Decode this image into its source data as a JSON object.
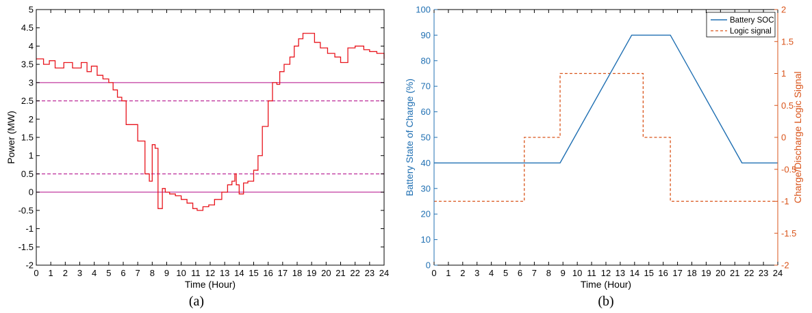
{
  "chart_data": [
    {
      "type": "line",
      "caption": "(a)",
      "xlabel": "Time (Hour)",
      "ylabel": "Power (MW)",
      "xlim": [
        0,
        24
      ],
      "ylim": [
        -2,
        5
      ],
      "xticks": [
        "0",
        "1",
        "2",
        "3",
        "4",
        "5",
        "6",
        "7",
        "8",
        "9",
        "10",
        "11",
        "12",
        "13",
        "14",
        "15",
        "16",
        "17",
        "18",
        "19",
        "20",
        "21",
        "22",
        "23",
        "24"
      ],
      "yticks": [
        "-2",
        "-1.5",
        "-1",
        "-0.5",
        "0",
        "0.5",
        "1",
        "1.5",
        "2",
        "2.5",
        "3",
        "3.5",
        "4",
        "4.5",
        "5"
      ],
      "grid": false,
      "colors": {
        "power": "#e8141c",
        "limits": "#c0389f"
      },
      "series": [
        {
          "style": "step",
          "x": [
            0,
            0.5,
            0.9,
            1.3,
            1.9,
            2.5,
            3.1,
            3.5,
            3.8,
            4.2,
            4.6,
            5.0,
            5.3,
            5.6,
            5.9,
            6.2,
            6.5,
            7.0,
            7.5,
            7.8,
            8.0,
            8.2,
            8.4,
            8.7,
            8.9,
            9.2,
            9.6,
            10.0,
            10.4,
            10.8,
            11.1,
            11.5,
            11.9,
            12.3,
            12.8,
            13.2,
            13.5,
            13.7,
            13.8,
            14.0,
            14.3,
            14.6,
            15.0,
            15.3,
            15.6,
            16.0,
            16.3,
            16.6,
            16.8,
            17.1,
            17.5,
            17.8,
            18.1,
            18.4,
            18.8,
            19.2,
            19.6,
            20.1,
            20.6,
            21.0,
            21.5,
            22.0,
            22.6,
            23.0,
            23.5,
            24
          ],
          "y": [
            3.65,
            3.5,
            3.6,
            3.4,
            3.55,
            3.4,
            3.55,
            3.3,
            3.45,
            3.2,
            3.1,
            3.0,
            2.8,
            2.6,
            2.5,
            1.85,
            1.85,
            1.4,
            0.5,
            0.3,
            1.3,
            1.2,
            -0.45,
            0.1,
            0.0,
            -0.05,
            -0.1,
            -0.2,
            -0.3,
            -0.45,
            -0.5,
            -0.4,
            -0.35,
            -0.2,
            0.0,
            0.2,
            0.3,
            0.5,
            0.2,
            -0.05,
            0.25,
            0.3,
            0.6,
            1.0,
            1.8,
            2.5,
            3.0,
            2.95,
            3.3,
            3.5,
            3.7,
            4.0,
            4.2,
            4.35,
            4.35,
            4.1,
            3.95,
            3.8,
            3.7,
            3.55,
            3.95,
            4.0,
            3.9,
            3.85,
            3.8,
            3.65
          ]
        },
        {
          "y": 3.0,
          "style": "solid"
        },
        {
          "y": 0.0,
          "style": "solid"
        },
        {
          "y": 2.5,
          "style": "dashed"
        },
        {
          "y": 0.5,
          "style": "dashed"
        }
      ]
    },
    {
      "type": "line",
      "caption": "(b)",
      "xlabel": "Time (Hour)",
      "ylabel": "Battery State of Charge (%)",
      "ylabel_right": "Charge/Discharge Logic Signal",
      "xlim": [
        0,
        24
      ],
      "ylim": [
        0,
        100
      ],
      "ylim_right": [
        -2,
        2
      ],
      "xticks": [
        "0",
        "1",
        "2",
        "3",
        "4",
        "5",
        "6",
        "7",
        "8",
        "9",
        "10",
        "11",
        "12",
        "13",
        "14",
        "15",
        "16",
        "17",
        "18",
        "19",
        "20",
        "21",
        "22",
        "23",
        "24"
      ],
      "yticks": [
        "0",
        "10",
        "20",
        "30",
        "40",
        "50",
        "60",
        "70",
        "80",
        "90",
        "100"
      ],
      "yticks_right": [
        "-2",
        "-1.5",
        "-1",
        "-0.5",
        "0",
        "0.5",
        "1",
        "1.5",
        "2"
      ],
      "grid": false,
      "legend_position": "top-right",
      "colors": {
        "soc": "#1f6fb2",
        "signal": "#d95319"
      },
      "series": [
        {
          "name": "Battery SOC",
          "axis": "left",
          "x": [
            0,
            8.8,
            13.8,
            16.5,
            21.5,
            24
          ],
          "y": [
            40,
            40,
            90,
            90,
            40,
            40
          ]
        },
        {
          "name": "Logic signal",
          "axis": "right",
          "style": "dashed-step",
          "x": [
            0,
            6.3,
            8.8,
            14.6,
            16.5,
            24
          ],
          "y": [
            -1,
            0,
            1,
            0,
            -1,
            -1
          ]
        }
      ]
    }
  ]
}
